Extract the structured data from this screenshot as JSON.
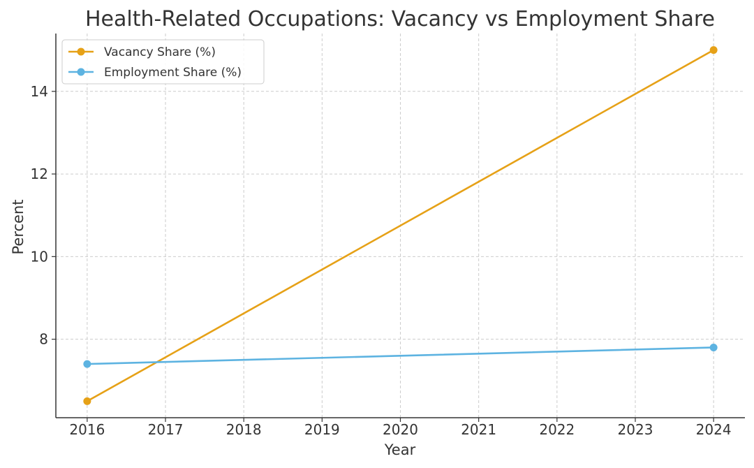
{
  "chart_data": {
    "type": "line",
    "title": "Health-Related Occupations: Vacancy vs Employment Share",
    "xlabel": "Year",
    "ylabel": "Percent",
    "x": [
      2016,
      2024
    ],
    "xticks": [
      "2016",
      "2017",
      "2018",
      "2019",
      "2020",
      "2021",
      "2022",
      "2023",
      "2024"
    ],
    "yticks": [
      "8",
      "10",
      "12",
      "14"
    ],
    "xlim": [
      2015.6,
      2024.4
    ],
    "ylim": [
      6.1,
      15.4
    ],
    "grid": true,
    "legend_position": "top-left",
    "series": [
      {
        "name": "Vacancy Share (%)",
        "color": "#E6A117",
        "values": [
          6.5,
          15.0
        ]
      },
      {
        "name": "Employment Share (%)",
        "color": "#5DB3E1",
        "values": [
          7.4,
          7.8
        ]
      }
    ]
  }
}
